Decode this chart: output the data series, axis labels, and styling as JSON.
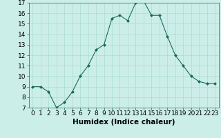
{
  "x": [
    0,
    1,
    2,
    3,
    4,
    5,
    6,
    7,
    8,
    9,
    10,
    11,
    12,
    13,
    14,
    15,
    16,
    17,
    18,
    19,
    20,
    21,
    22,
    23
  ],
  "y": [
    9,
    9,
    8.5,
    7,
    7.5,
    8.5,
    10,
    11,
    12.5,
    13,
    15.5,
    15.8,
    15.3,
    17,
    17.2,
    15.8,
    15.8,
    13.8,
    12,
    11,
    10,
    9.5,
    9.3,
    9.3
  ],
  "line_color": "#1a6b5a",
  "marker_color": "#1a6b5a",
  "bg_color": "#cceee8",
  "grid_color": "#aaddcc",
  "xlabel": "Humidex (Indice chaleur)",
  "ylim": [
    7,
    17
  ],
  "xlim": [
    -0.5,
    23.5
  ],
  "yticks": [
    7,
    8,
    9,
    10,
    11,
    12,
    13,
    14,
    15,
    16,
    17
  ],
  "xticks": [
    0,
    1,
    2,
    3,
    4,
    5,
    6,
    7,
    8,
    9,
    10,
    11,
    12,
    13,
    14,
    15,
    16,
    17,
    18,
    19,
    20,
    21,
    22,
    23
  ],
  "xlabel_fontsize": 7.5,
  "tick_fontsize": 6.5
}
